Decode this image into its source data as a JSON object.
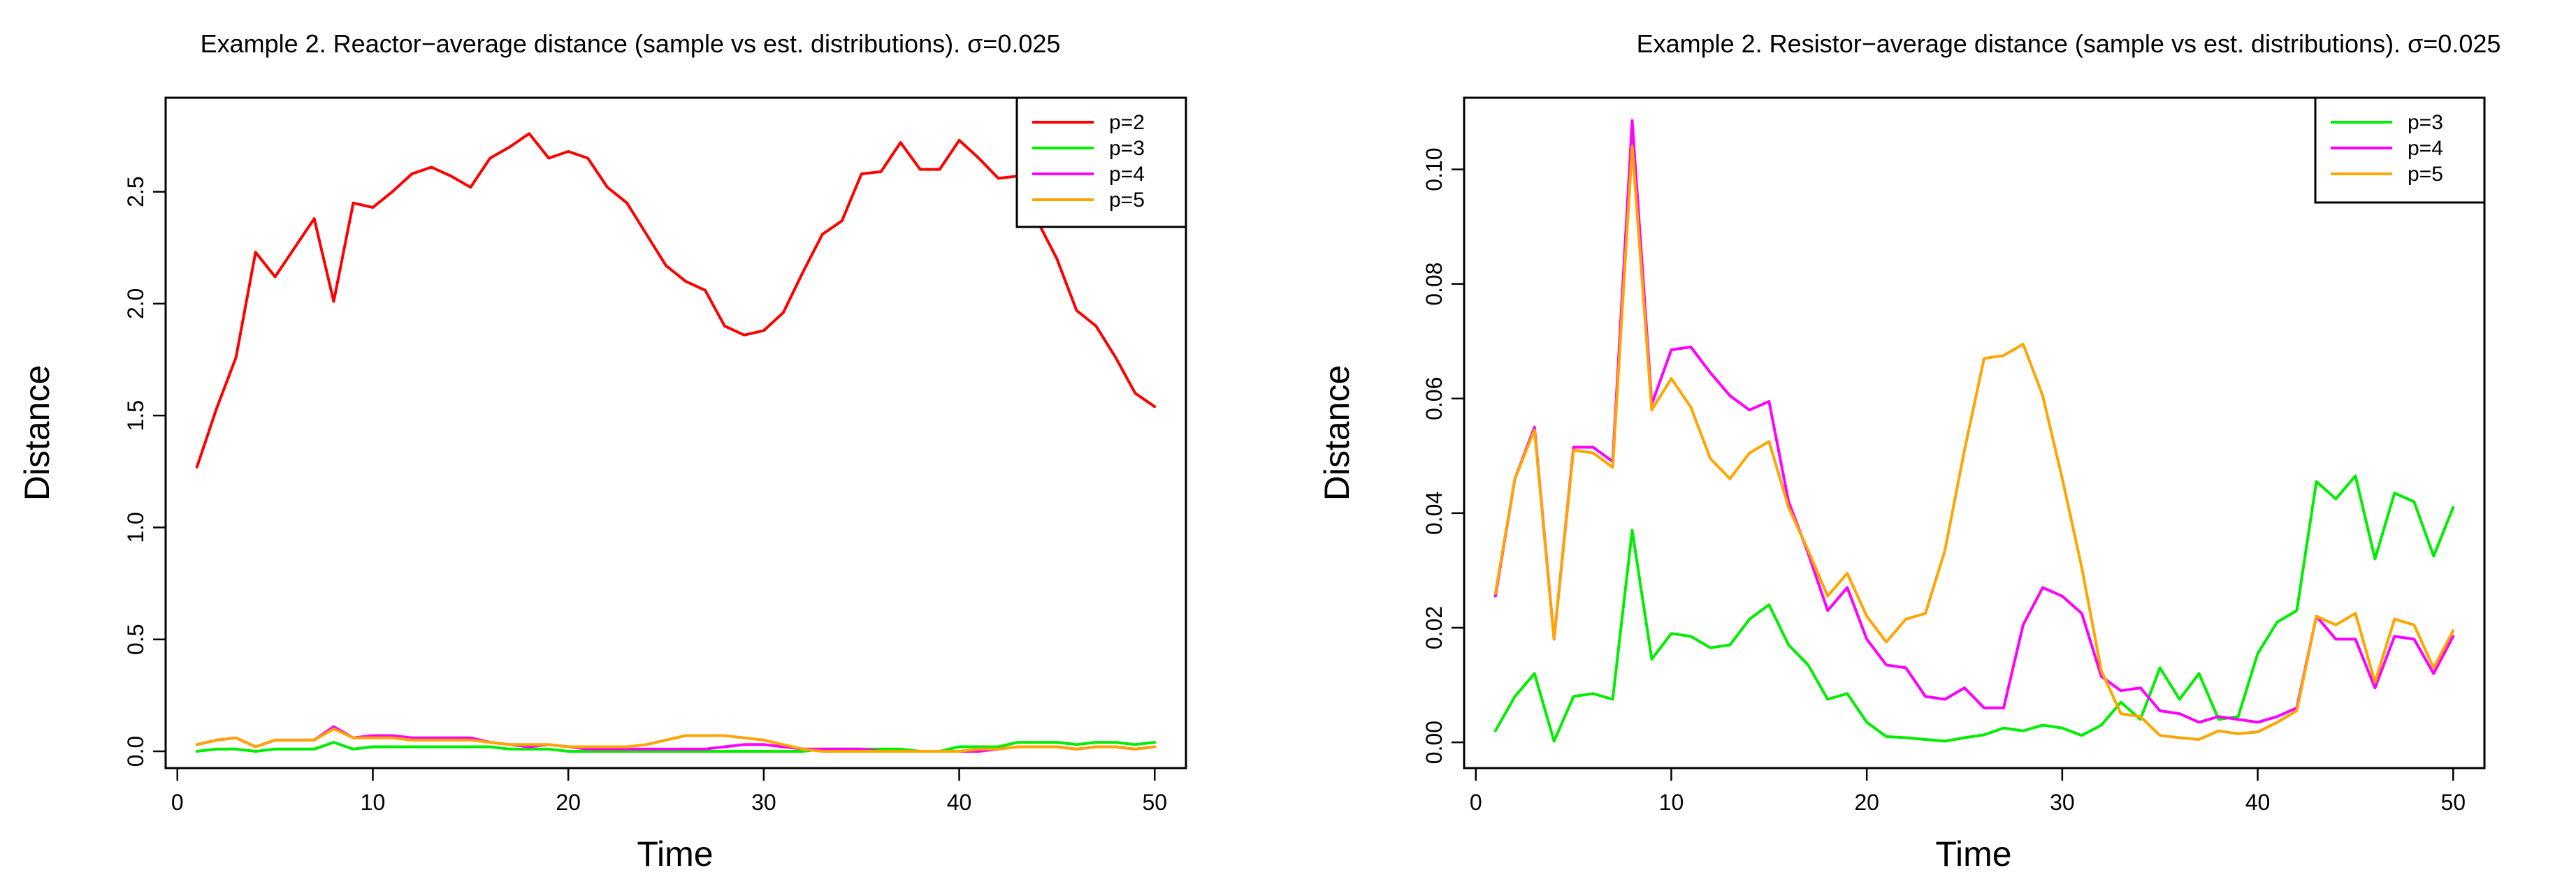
{
  "chart_data": [
    {
      "type": "line",
      "title": "Example 2. Reactor−average distance (sample vs est. distributions). σ=0.025",
      "xlabel": "Time",
      "ylabel": "Distance",
      "xlim": [
        0,
        50
      ],
      "ylim": [
        0,
        2.8
      ],
      "xticks": [
        "0",
        "10",
        "20",
        "30",
        "40",
        "50"
      ],
      "yticks": [
        "0.0",
        "0.5",
        "1.0",
        "1.5",
        "2.0",
        "2.5"
      ],
      "legend_position": "top-right",
      "x": [
        1,
        2,
        3,
        4,
        5,
        6,
        7,
        8,
        9,
        10,
        11,
        12,
        13,
        14,
        15,
        16,
        17,
        18,
        19,
        20,
        21,
        22,
        23,
        24,
        25,
        26,
        27,
        28,
        29,
        30,
        31,
        32,
        33,
        34,
        35,
        36,
        37,
        38,
        39,
        40,
        41,
        42,
        43,
        44,
        45,
        46,
        47,
        48,
        49,
        50
      ],
      "series": [
        {
          "name": "p=2",
          "color": "#ff0000",
          "values": [
            1.27,
            1.53,
            1.76,
            2.23,
            2.12,
            2.25,
            2.38,
            2.01,
            2.45,
            2.43,
            2.5,
            2.58,
            2.61,
            2.57,
            2.52,
            2.65,
            2.7,
            2.76,
            2.65,
            2.68,
            2.65,
            2.52,
            2.45,
            2.31,
            2.17,
            2.1,
            2.06,
            1.9,
            1.86,
            1.88,
            1.96,
            2.14,
            2.31,
            2.37,
            2.58,
            2.59,
            2.72,
            2.6,
            2.6,
            2.73,
            2.65,
            2.56,
            2.57,
            2.37,
            2.2,
            1.97,
            1.9,
            1.76,
            1.6,
            1.54
          ]
        },
        {
          "name": "p=3",
          "color": "#00ee00",
          "values": [
            0.0,
            0.01,
            0.01,
            0.0,
            0.01,
            0.01,
            0.01,
            0.04,
            0.01,
            0.02,
            0.02,
            0.02,
            0.02,
            0.02,
            0.02,
            0.02,
            0.01,
            0.01,
            0.01,
            0.0,
            0.0,
            0.0,
            0.0,
            0.0,
            0.0,
            0.0,
            0.0,
            0.0,
            0.0,
            0.0,
            0.0,
            0.0,
            0.01,
            0.01,
            0.01,
            0.01,
            0.01,
            0.0,
            0.0,
            0.02,
            0.02,
            0.02,
            0.04,
            0.04,
            0.04,
            0.03,
            0.04,
            0.04,
            0.03,
            0.04
          ]
        },
        {
          "name": "p=4",
          "color": "#ff00ff",
          "values": [
            0.03,
            0.05,
            0.06,
            0.02,
            0.05,
            0.05,
            0.05,
            0.11,
            0.06,
            0.07,
            0.07,
            0.06,
            0.06,
            0.06,
            0.06,
            0.04,
            0.03,
            0.02,
            0.03,
            0.02,
            0.01,
            0.01,
            0.01,
            0.01,
            0.01,
            0.01,
            0.01,
            0.02,
            0.03,
            0.03,
            0.02,
            0.01,
            0.01,
            0.01,
            0.01,
            0.0,
            0.0,
            0.0,
            0.0,
            0.0,
            0.0,
            0.01,
            0.02,
            0.02,
            0.02,
            0.01,
            0.02,
            0.02,
            0.01,
            0.02
          ]
        },
        {
          "name": "p=5",
          "color": "#ffa500",
          "values": [
            0.03,
            0.05,
            0.06,
            0.02,
            0.05,
            0.05,
            0.05,
            0.1,
            0.06,
            0.06,
            0.06,
            0.05,
            0.05,
            0.05,
            0.05,
            0.04,
            0.03,
            0.03,
            0.03,
            0.02,
            0.02,
            0.02,
            0.02,
            0.03,
            0.05,
            0.07,
            0.07,
            0.07,
            0.06,
            0.05,
            0.03,
            0.01,
            0.0,
            0.0,
            0.0,
            0.0,
            0.0,
            0.0,
            0.0,
            0.0,
            0.01,
            0.01,
            0.02,
            0.02,
            0.02,
            0.01,
            0.02,
            0.02,
            0.01,
            0.02
          ]
        }
      ]
    },
    {
      "type": "line",
      "title": "Example 2. Resistor−average distance (sample vs est. distributions). σ=0.025",
      "xlabel": "Time",
      "ylabel": "Distance",
      "xlim": [
        0,
        50
      ],
      "ylim": [
        0,
        0.11
      ],
      "xticks": [
        "0",
        "10",
        "20",
        "30",
        "40",
        "50"
      ],
      "yticks": [
        "0.00",
        "0.02",
        "0.04",
        "0.06",
        "0.08",
        "0.10"
      ],
      "legend_position": "top-right",
      "x": [
        1,
        2,
        3,
        4,
        5,
        6,
        7,
        8,
        9,
        10,
        11,
        12,
        13,
        14,
        15,
        16,
        17,
        18,
        19,
        20,
        21,
        22,
        23,
        24,
        25,
        26,
        27,
        28,
        29,
        30,
        31,
        32,
        33,
        34,
        35,
        36,
        37,
        38,
        39,
        40,
        41,
        42,
        43,
        44,
        45,
        46,
        47,
        48,
        49,
        50
      ],
      "series": [
        {
          "name": "p=3",
          "color": "#00ee00",
          "values": [
            0.002,
            0.008,
            0.012,
            0.0002,
            0.008,
            0.0085,
            0.0075,
            0.037,
            0.0145,
            0.019,
            0.0185,
            0.0165,
            0.017,
            0.0215,
            0.024,
            0.017,
            0.0135,
            0.0075,
            0.0085,
            0.0035,
            0.001,
            0.0008,
            0.0005,
            0.0002,
            0.0008,
            0.0013,
            0.0025,
            0.002,
            0.003,
            0.0025,
            0.0012,
            0.003,
            0.007,
            0.004,
            0.013,
            0.0075,
            0.012,
            0.004,
            0.0045,
            0.0155,
            0.021,
            0.023,
            0.0455,
            0.0425,
            0.0465,
            0.032,
            0.0435,
            0.042,
            0.0325,
            0.041
          ]
        },
        {
          "name": "p=4",
          "color": "#ff00ff",
          "values": [
            0.0255,
            0.046,
            0.055,
            0.018,
            0.0515,
            0.0515,
            0.049,
            0.1085,
            0.059,
            0.0685,
            0.069,
            0.0645,
            0.0605,
            0.058,
            0.0595,
            0.042,
            0.033,
            0.023,
            0.027,
            0.018,
            0.0135,
            0.013,
            0.008,
            0.0075,
            0.0095,
            0.006,
            0.006,
            0.0205,
            0.027,
            0.0255,
            0.0225,
            0.0115,
            0.009,
            0.0095,
            0.0055,
            0.005,
            0.0035,
            0.0045,
            0.004,
            0.0035,
            0.0045,
            0.006,
            0.022,
            0.018,
            0.018,
            0.0095,
            0.0185,
            0.018,
            0.012,
            0.0185
          ]
        },
        {
          "name": "p=5",
          "color": "#ffa500",
          "values": [
            0.026,
            0.046,
            0.0545,
            0.018,
            0.051,
            0.0505,
            0.048,
            0.104,
            0.058,
            0.0635,
            0.0585,
            0.0495,
            0.046,
            0.0505,
            0.0525,
            0.041,
            0.0335,
            0.0255,
            0.0295,
            0.022,
            0.0175,
            0.0215,
            0.0225,
            0.0335,
            0.051,
            0.067,
            0.0675,
            0.0695,
            0.0605,
            0.046,
            0.0305,
            0.0125,
            0.005,
            0.0045,
            0.0012,
            0.0008,
            0.0005,
            0.002,
            0.0015,
            0.0018,
            0.0035,
            0.0055,
            0.022,
            0.0205,
            0.0225,
            0.0105,
            0.0215,
            0.0205,
            0.013,
            0.0195
          ]
        }
      ]
    }
  ]
}
